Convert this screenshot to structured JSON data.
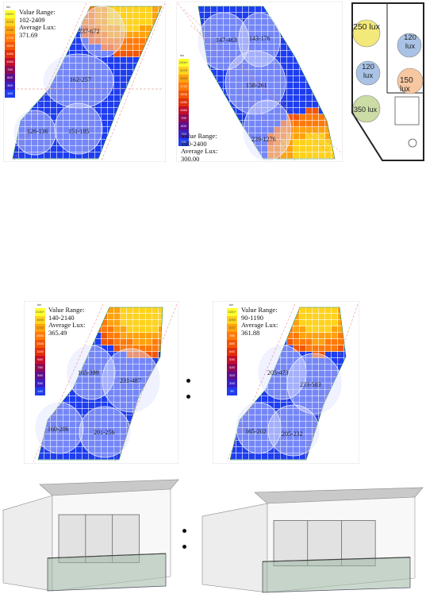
{
  "legend_unit": "lux",
  "panels": {
    "a": {
      "legend": [
        "2400+",
        "2079",
        "1940",
        "1720",
        "1500",
        "1280",
        "1060",
        "790",
        "600",
        "300",
        "100"
      ],
      "info": [
        "Value Range:",
        "102-2409",
        "Average Lux:",
        "371.69"
      ],
      "zones": [
        "237-672",
        "162-257",
        "126-136",
        "151-185"
      ]
    },
    "b": {
      "legend": [
        "2400+",
        "2079",
        "1940",
        "1720",
        "1500",
        "1280",
        "1060",
        "790",
        "600",
        "300",
        "100"
      ],
      "info": [
        "Value Range:",
        "100-2400",
        "Average Lux:",
        "300.00"
      ],
      "zones": [
        "147-463",
        "143-176",
        "158-261",
        "239-1276"
      ]
    },
    "c": {
      "zones": [
        "250 lux",
        "120 lux",
        "120 lux",
        "150 lux",
        "350 lux"
      ]
    },
    "d": {
      "legend": [
        "2140+",
        "1940",
        "1740",
        "1540",
        "1340",
        "1140",
        "940",
        "740",
        "540",
        "340",
        "140"
      ],
      "info": [
        "Value Range:",
        "140-2140",
        "Average Lux:",
        "365.49"
      ],
      "zones": [
        "165-399",
        "231-487",
        "160-206",
        "201-256"
      ]
    },
    "e": {
      "legend": [
        "1150+",
        "1050",
        "870",
        "785",
        "680",
        "640",
        "530",
        "420",
        "310",
        "200",
        "90"
      ],
      "info": [
        "Value Range:",
        "90-1190",
        "Average Lux:",
        "361.88"
      ],
      "zones": [
        "205-473",
        "233-583",
        "165-202",
        "205-232"
      ]
    }
  },
  "colors": {
    "legend": [
      "#ffff2e",
      "#ffd21e",
      "#ffa20f",
      "#ff7a0a",
      "#f25606",
      "#e1300a",
      "#c40e2a",
      "#8f0a55",
      "#5e0f8c",
      "#3a1fc4",
      "#1f3df0"
    ],
    "light_circle": "#bcc8ff",
    "plan_yellow": "#f3e97b",
    "plan_blue": "#a9c3e6",
    "plan_orange": "#f7c7a1",
    "plan_green": "#cbdca4"
  }
}
